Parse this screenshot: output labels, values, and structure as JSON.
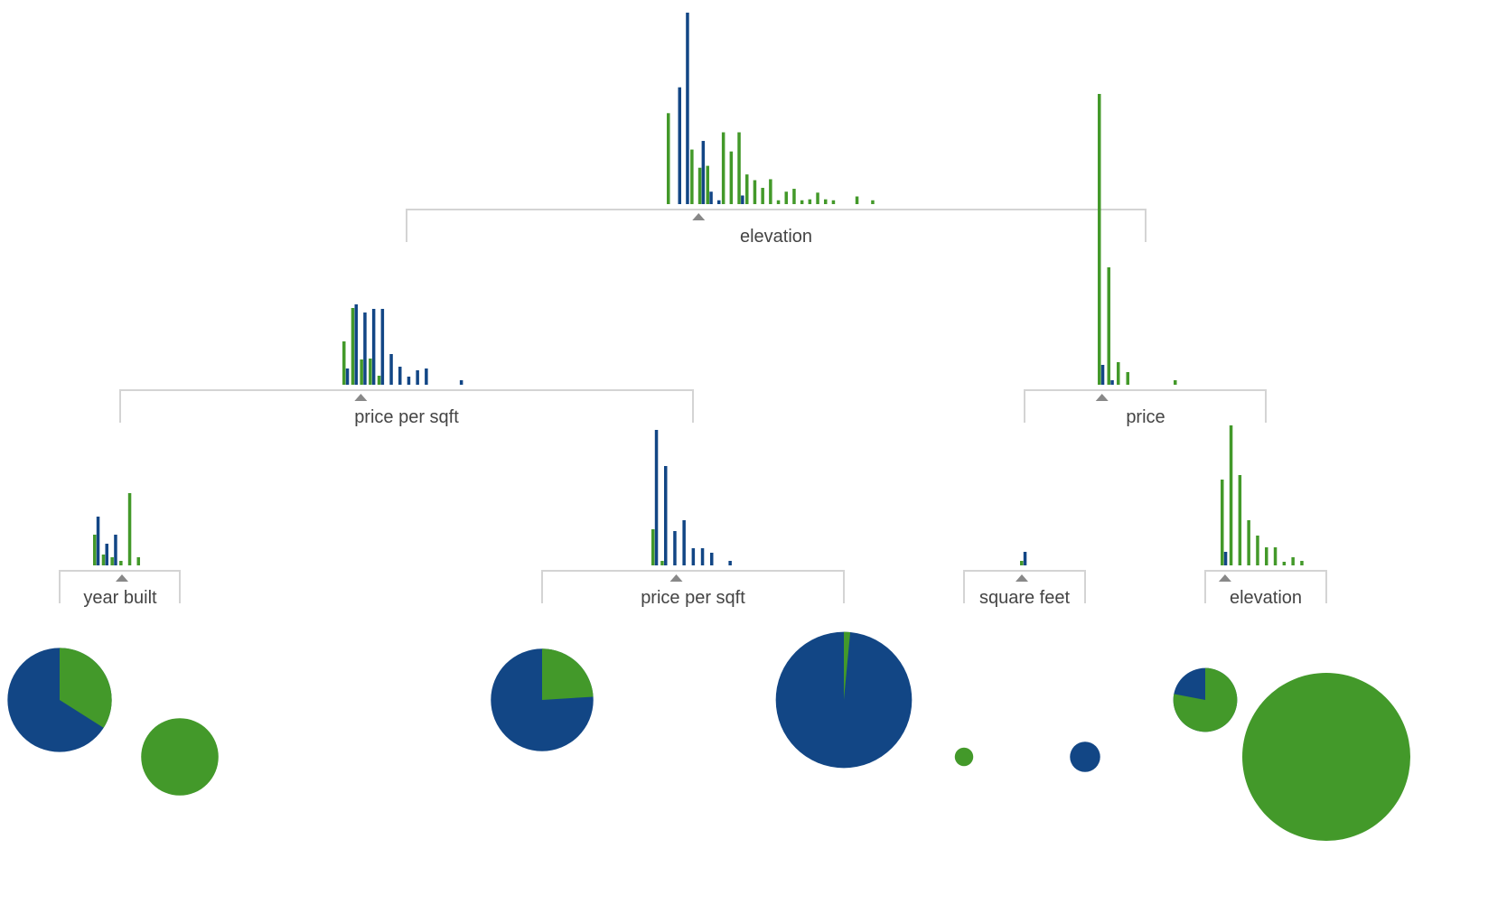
{
  "colors": {
    "class_a": "#43992a",
    "class_b": "#124685",
    "bracket": "#d4d4d4",
    "marker": "#888888",
    "label": "#444444"
  },
  "tree": {
    "nodes": [
      {
        "id": "root",
        "label": "elevation",
        "histogram": {
          "bins": [
            {
              "a": 95,
              "b": 0
            },
            {
              "a": 0,
              "b": 122
            },
            {
              "a": 0,
              "b": 200
            },
            {
              "a": 57,
              "b": 0
            },
            {
              "a": 38,
              "b": 66
            },
            {
              "a": 40,
              "b": 13
            },
            {
              "a": 0,
              "b": 4
            },
            {
              "a": 75,
              "b": 0
            },
            {
              "a": 55,
              "b": 0
            },
            {
              "a": 75,
              "b": 9
            },
            {
              "a": 31,
              "b": 0
            },
            {
              "a": 25,
              "b": 0
            },
            {
              "a": 17,
              "b": 0
            },
            {
              "a": 26,
              "b": 0
            },
            {
              "a": 4,
              "b": 0
            },
            {
              "a": 13,
              "b": 0
            },
            {
              "a": 16,
              "b": 0
            },
            {
              "a": 4,
              "b": 0
            },
            {
              "a": 5,
              "b": 0
            },
            {
              "a": 12,
              "b": 0
            },
            {
              "a": 5,
              "b": 0
            },
            {
              "a": 4,
              "b": 0
            },
            {
              "a": 0,
              "b": 0
            },
            {
              "a": 0,
              "b": 0
            },
            {
              "a": 8,
              "b": 0
            },
            {
              "a": 0,
              "b": 0
            },
            {
              "a": 4,
              "b": 0
            }
          ]
        },
        "split_fraction": 0.15
      },
      {
        "id": "left",
        "label": "price per sqft",
        "histogram": {
          "bins": [
            {
              "a": 48,
              "b": 18
            },
            {
              "a": 85,
              "b": 89
            },
            {
              "a": 28,
              "b": 80
            },
            {
              "a": 29,
              "b": 84
            },
            {
              "a": 10,
              "b": 84
            },
            {
              "a": 0,
              "b": 34
            },
            {
              "a": 0,
              "b": 20
            },
            {
              "a": 0,
              "b": 9
            },
            {
              "a": 0,
              "b": 16
            },
            {
              "a": 0,
              "b": 18
            },
            {
              "a": 0,
              "b": 0
            },
            {
              "a": 0,
              "b": 0
            },
            {
              "a": 0,
              "b": 0
            },
            {
              "a": 0,
              "b": 5
            }
          ]
        },
        "split_fraction": 0.15
      },
      {
        "id": "right",
        "label": "price",
        "histogram": {
          "bins": [
            {
              "a": 322,
              "b": 22
            },
            {
              "a": 130,
              "b": 5
            },
            {
              "a": 25,
              "b": 0
            },
            {
              "a": 14,
              "b": 0
            },
            {
              "a": 0,
              "b": 0
            },
            {
              "a": 0,
              "b": 0
            },
            {
              "a": 0,
              "b": 0
            },
            {
              "a": 0,
              "b": 0
            },
            {
              "a": 5,
              "b": 0
            }
          ]
        },
        "split_fraction": 0.05
      },
      {
        "id": "ll",
        "label": "year built",
        "histogram": {
          "bins": [
            {
              "a": 34,
              "b": 54
            },
            {
              "a": 12,
              "b": 24
            },
            {
              "a": 9,
              "b": 34
            },
            {
              "a": 5,
              "b": 0
            },
            {
              "a": 80,
              "b": 0
            },
            {
              "a": 9,
              "b": 0
            }
          ]
        },
        "split_fraction": 0.55
      },
      {
        "id": "lr",
        "label": "price per sqft",
        "histogram": {
          "bins": [
            {
              "a": 40,
              "b": 150
            },
            {
              "a": 5,
              "b": 110
            },
            {
              "a": 0,
              "b": 38
            },
            {
              "a": 0,
              "b": 50
            },
            {
              "a": 0,
              "b": 19
            },
            {
              "a": 0,
              "b": 19
            },
            {
              "a": 0,
              "b": 14
            },
            {
              "a": 0,
              "b": 0
            },
            {
              "a": 0,
              "b": 5
            }
          ]
        },
        "split_fraction": 0.3
      },
      {
        "id": "rl",
        "label": "square feet",
        "histogram": {
          "bins": [
            {
              "a": 5,
              "b": 15
            }
          ]
        },
        "split_fraction": 0.1
      },
      {
        "id": "rr",
        "label": "elevation",
        "histogram": {
          "bins": [
            {
              "a": 95,
              "b": 15
            },
            {
              "a": 155,
              "b": 0
            },
            {
              "a": 100,
              "b": 0
            },
            {
              "a": 50,
              "b": 0
            },
            {
              "a": 33,
              "b": 0
            },
            {
              "a": 20,
              "b": 0
            },
            {
              "a": 20,
              "b": 0
            },
            {
              "a": 4,
              "b": 0
            },
            {
              "a": 9,
              "b": 0
            },
            {
              "a": 5,
              "b": 0
            }
          ]
        },
        "split_fraction": 0.05
      }
    ],
    "leaves": [
      {
        "id": "leaf-1",
        "a_fraction": 0.34,
        "size": 0.62
      },
      {
        "id": "leaf-2",
        "a_fraction": 1.0,
        "size": 0.46
      },
      {
        "id": "leaf-3",
        "a_fraction": 0.24,
        "size": 0.61
      },
      {
        "id": "leaf-4",
        "a_fraction": 0.015,
        "size": 0.81
      },
      {
        "id": "leaf-5",
        "a_fraction": 1.0,
        "size": 0.11
      },
      {
        "id": "leaf-6",
        "a_fraction": 0.0,
        "size": 0.18
      },
      {
        "id": "leaf-7",
        "a_fraction": 0.78,
        "size": 0.38
      },
      {
        "id": "leaf-8",
        "a_fraction": 1.0,
        "size": 1.0
      }
    ]
  }
}
